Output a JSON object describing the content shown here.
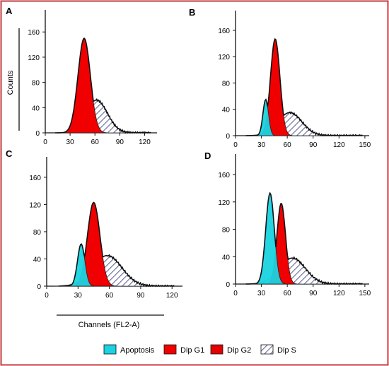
{
  "colors": {
    "frame": "#c0393b",
    "apoptosis": "#19d3e0",
    "dip_g1": "#f00000",
    "dip_g2": "#e20000",
    "dip_s_hatch": "#5a5f94",
    "outline": "#111111"
  },
  "legend": {
    "placement": "bottom-center",
    "items": [
      {
        "label": "Apoptosis",
        "color": "#19d3e0",
        "pattern": "solid"
      },
      {
        "label": "Dip G1",
        "color": "#f00000",
        "pattern": "solid"
      },
      {
        "label": "Dip G2",
        "color": "#e20000",
        "pattern": "solid"
      },
      {
        "label": "Dip S",
        "color": "#5a5f94",
        "pattern": "hatch"
      }
    ]
  },
  "chart_data": [
    {
      "panel": "A",
      "type": "area",
      "ylabel": "Counts",
      "xlabel": "",
      "xlim": [
        0,
        135
      ],
      "ylim": [
        0,
        195
      ],
      "xticks": [
        0,
        30,
        60,
        90,
        120
      ],
      "yticks": [
        0,
        40,
        80,
        120,
        160
      ],
      "series": [
        {
          "component": "dip_g1",
          "peak": 47,
          "height": 150,
          "sigma": 7.5
        },
        {
          "component": "dip_s",
          "peak": 62,
          "height": 52,
          "sigma": 13
        }
      ]
    },
    {
      "panel": "B",
      "type": "area",
      "ylabel": "",
      "xlabel": "",
      "xlim": [
        0,
        155
      ],
      "ylim": [
        0,
        190
      ],
      "xticks": [
        0,
        30,
        60,
        90,
        120,
        150
      ],
      "yticks": [
        0,
        40,
        80,
        120,
        160
      ],
      "series": [
        {
          "component": "apoptosis",
          "peak": 35,
          "height": 55,
          "sigma": 3.2
        },
        {
          "component": "dip_g1",
          "peak": 46,
          "height": 147,
          "sigma": 5.5
        },
        {
          "component": "dip_s",
          "peak": 63,
          "height": 35,
          "sigma": 14
        }
      ]
    },
    {
      "panel": "C",
      "type": "area",
      "ylabel": "",
      "xlabel": "Channels (FL2-A)",
      "xlim": [
        0,
        130
      ],
      "ylim": [
        0,
        190
      ],
      "xticks": [
        0,
        30,
        60,
        90,
        120
      ],
      "yticks": [
        0,
        40,
        80,
        120,
        160
      ],
      "series": [
        {
          "component": "apoptosis",
          "peak": 33,
          "height": 62,
          "sigma": 3.5
        },
        {
          "component": "dip_g1",
          "peak": 45,
          "height": 123,
          "sigma": 6
        },
        {
          "component": "dip_s",
          "peak": 58,
          "height": 45,
          "sigma": 14
        }
      ]
    },
    {
      "panel": "D",
      "type": "area",
      "ylabel": "",
      "xlabel": "",
      "xlim": [
        0,
        155
      ],
      "ylim": [
        0,
        190
      ],
      "xticks": [
        0,
        30,
        60,
        90,
        120,
        150
      ],
      "yticks": [
        0,
        40,
        80,
        120,
        160
      ],
      "series": [
        {
          "component": "apoptosis",
          "peak": 40,
          "height": 133,
          "sigma": 5
        },
        {
          "component": "dip_g1",
          "peak": 53,
          "height": 118,
          "sigma": 5
        },
        {
          "component": "dip_s",
          "peak": 66,
          "height": 38,
          "sigma": 15
        }
      ]
    }
  ]
}
